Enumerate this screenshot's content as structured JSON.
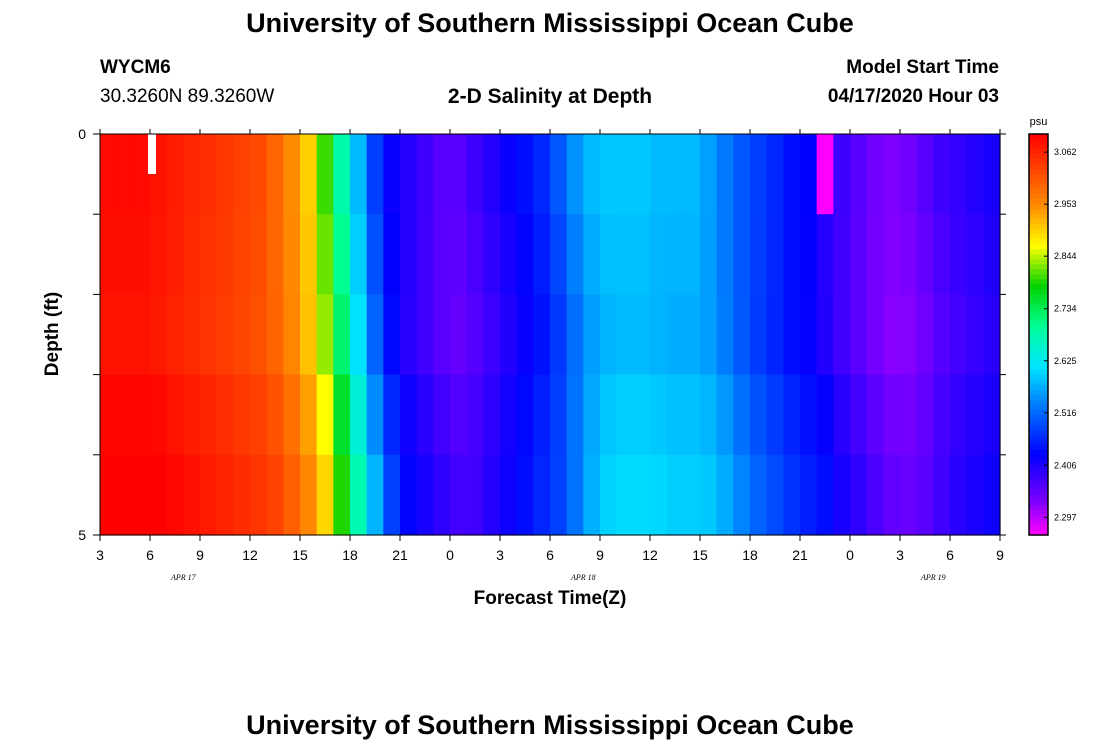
{
  "page": {
    "title_top": "University of Southern Mississippi Ocean Cube",
    "title_bottom": "University of Southern Mississippi Ocean Cube",
    "station_id": "WYCM6",
    "coordinates": "30.3260N 89.3260W",
    "plot_title": "2-D Salinity at Depth",
    "model_start_label": "Model Start Time",
    "model_start_value": "04/17/2020 Hour 03"
  },
  "chart_data": {
    "type": "heatmap",
    "title": "2-D Salinity at Depth",
    "xlabel": "Forecast Time(Z)",
    "ylabel": "Depth (ft)",
    "x_tick_labels": [
      "3",
      "6",
      "9",
      "12",
      "15",
      "18",
      "21",
      "0",
      "3",
      "6",
      "9",
      "12",
      "15",
      "18",
      "21",
      "0",
      "3",
      "6",
      "9"
    ],
    "x_date_labels": [
      {
        "label": "APR  17",
        "hour_index": 5
      },
      {
        "label": "APR  18",
        "hour_index": 29
      },
      {
        "label": "APR  19",
        "hour_index": 50
      }
    ],
    "y_tick_labels": [
      "0",
      "",
      "",
      "",
      "",
      "5"
    ],
    "ylim": [
      0,
      5
    ],
    "xlim_hours_from_start": [
      0,
      54
    ],
    "colorbar": {
      "unit": "psu",
      "tick_labels": [
        "3.062",
        "2.953",
        "2.844",
        "2.734",
        "2.625",
        "2.516",
        "2.406",
        "2.297"
      ],
      "min": 2.26,
      "max": 3.1
    },
    "depth_rows": 5,
    "hour_columns": 54,
    "column_values": [
      3.09,
      3.09,
      3.09,
      3.08,
      3.07,
      3.06,
      3.05,
      3.04,
      3.03,
      3.02,
      2.99,
      2.95,
      2.9,
      2.8,
      2.68,
      2.58,
      2.48,
      2.42,
      2.4,
      2.38,
      2.36,
      2.36,
      2.38,
      2.4,
      2.42,
      2.44,
      2.46,
      2.5,
      2.55,
      2.58,
      2.59,
      2.59,
      2.59,
      2.58,
      2.58,
      2.58,
      2.56,
      2.53,
      2.5,
      2.48,
      2.46,
      2.44,
      2.43,
      2.4,
      2.38,
      2.36,
      2.34,
      2.33,
      2.34,
      2.36,
      2.38,
      2.39,
      2.4,
      2.41
    ],
    "row_shift_hours": [
      0,
      0.2,
      0.4,
      0.6,
      0.8
    ],
    "row_offsets": [
      0.0,
      -0.005,
      -0.01,
      0.005,
      0.015
    ],
    "anomaly_max_cell": {
      "hour_index": 43,
      "depth_row": 0,
      "value": 2.26
    },
    "marker_bar": {
      "hour_index": 3,
      "color": "#ffffff"
    }
  }
}
